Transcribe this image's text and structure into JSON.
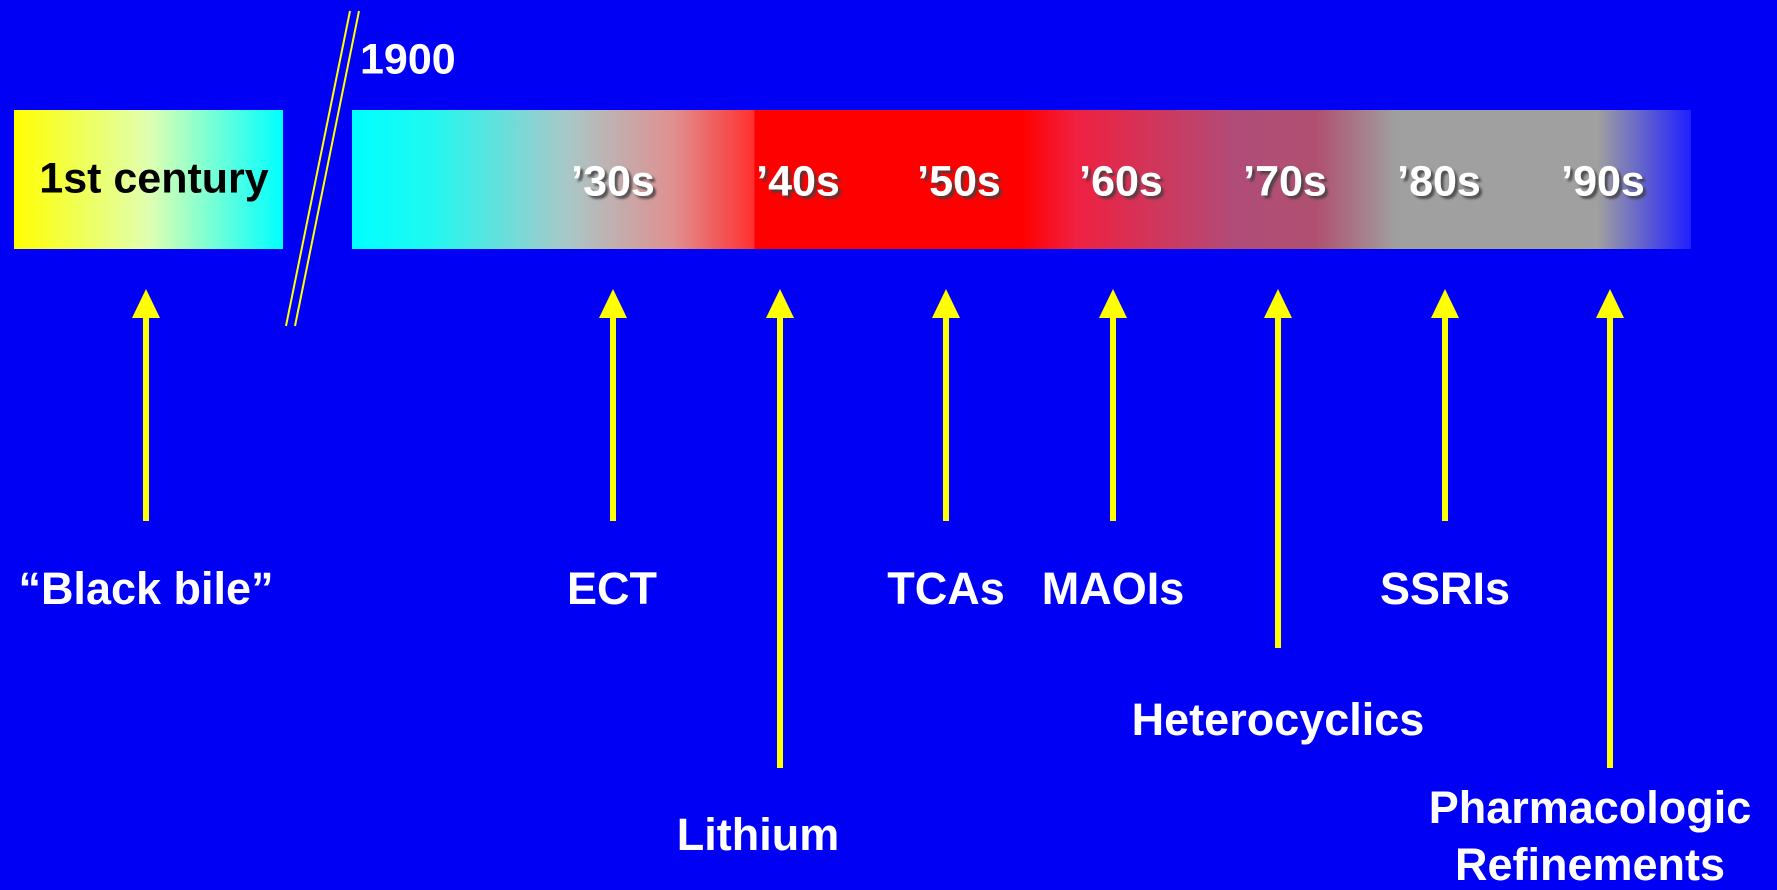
{
  "timeline": {
    "early": "1st century",
    "marker": "1900",
    "decades": [
      "’30s",
      "’40s",
      "’50s",
      "’60s",
      "’70s",
      "’80s",
      "’90s"
    ]
  },
  "treatments": [
    {
      "label": [
        "“Black bile”"
      ]
    },
    {
      "label": [
        "ECT"
      ]
    },
    {
      "label": [
        "Lithium"
      ]
    },
    {
      "label": [
        "TCAs"
      ]
    },
    {
      "label": [
        "MAOIs"
      ]
    },
    {
      "label": [
        "Heterocyclics"
      ]
    },
    {
      "label": [
        "SSRIs"
      ]
    },
    {
      "label": [
        "Pharmacologic",
        "Refinements"
      ]
    }
  ]
}
